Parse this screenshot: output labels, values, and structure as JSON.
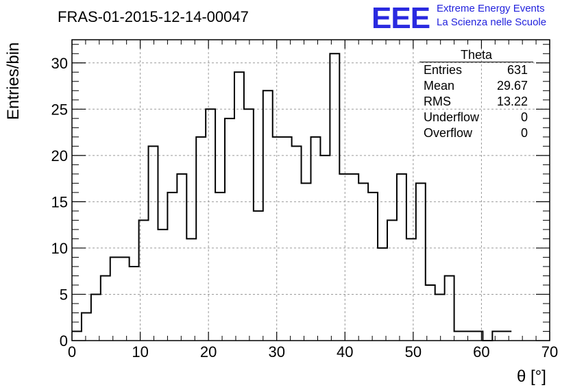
{
  "header": {
    "title": "FRAS-01-2015-12-14-00047",
    "logo_mark": "EEE",
    "logo_line1": "Extreme Energy Events",
    "logo_line2": "La Scienza nelle Scuole"
  },
  "stats_box": {
    "title": "Theta",
    "rows": [
      {
        "key": "Entries",
        "value": "631"
      },
      {
        "key": "Mean",
        "value": "29.67"
      },
      {
        "key": "RMS",
        "value": "13.22"
      },
      {
        "key": "Underflow",
        "value": "0"
      },
      {
        "key": "Overflow",
        "value": "0"
      }
    ]
  },
  "chart_data": {
    "type": "bar",
    "style": "step-histogram",
    "title": "FRAS-01-2015-12-14-00047",
    "xlabel": "θ [°]",
    "ylabel": "Entries/bin",
    "xlim": [
      0,
      70
    ],
    "ylim": [
      0,
      32.5
    ],
    "grid": true,
    "bin_width": 1.4,
    "bin_edges_start": 0,
    "values": [
      1,
      3,
      5,
      7,
      9,
      9,
      8,
      13,
      21,
      12,
      16,
      18,
      11,
      22,
      25,
      16,
      24,
      29,
      25,
      14,
      27,
      22,
      22,
      21,
      17,
      22,
      20,
      31,
      18,
      18,
      17,
      16,
      10,
      13,
      18,
      11,
      17,
      6,
      5,
      7,
      1,
      1,
      1,
      0,
      1,
      1
    ],
    "x_ticks": [
      "0",
      "10",
      "20",
      "30",
      "40",
      "50",
      "60",
      "70"
    ],
    "y_ticks": [
      "0",
      "5",
      "10",
      "15",
      "20",
      "25",
      "30"
    ],
    "colors": {
      "line": "#000000",
      "grid": "#999999",
      "logo": "#2222dd"
    }
  }
}
